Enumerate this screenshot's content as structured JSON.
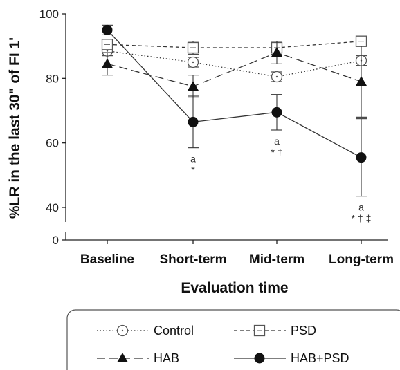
{
  "chart_data": {
    "type": "line",
    "title": "",
    "xlabel": "Evaluation time",
    "ylabel": "%LR in the last 30\" of FI 1'",
    "ylim": [
      0,
      100
    ],
    "yticks": [
      0,
      40,
      60,
      80,
      100
    ],
    "axis_break": true,
    "grid": false,
    "legend_position": "bottom",
    "categories": [
      "Baseline",
      "Short-term",
      "Mid-term",
      "Long-term"
    ],
    "series": [
      {
        "name": "Control",
        "style": "dotted",
        "marker": "open-circle",
        "values": [
          88.5,
          85,
          80.5,
          85.5
        ],
        "errors": [
          1.5,
          1.5,
          1.5,
          1.5
        ]
      },
      {
        "name": "PSD",
        "style": "short-dash",
        "marker": "open-square",
        "values": [
          90.5,
          89.5,
          89.5,
          91.5
        ],
        "errors": [
          1.0,
          2.0,
          2.0,
          1.5
        ]
      },
      {
        "name": "HAB",
        "style": "long-dash",
        "marker": "filled-triangle",
        "values": [
          84.5,
          77.5,
          88,
          79
        ],
        "errors": [
          3.5,
          3.5,
          3.5,
          11
        ]
      },
      {
        "name": "HAB+PSD",
        "style": "solid",
        "marker": "filled-circle",
        "values": [
          95,
          66.5,
          69.5,
          55.5
        ],
        "errors": [
          1.5,
          8.0,
          5.5,
          12.0
        ]
      }
    ],
    "annotations": [
      {
        "category": "Short-term",
        "lines": [
          "a",
          "*"
        ]
      },
      {
        "category": "Mid-term",
        "lines": [
          "a",
          "* †"
        ]
      },
      {
        "category": "Long-term",
        "lines": [
          "a",
          "* † ‡"
        ]
      }
    ]
  }
}
